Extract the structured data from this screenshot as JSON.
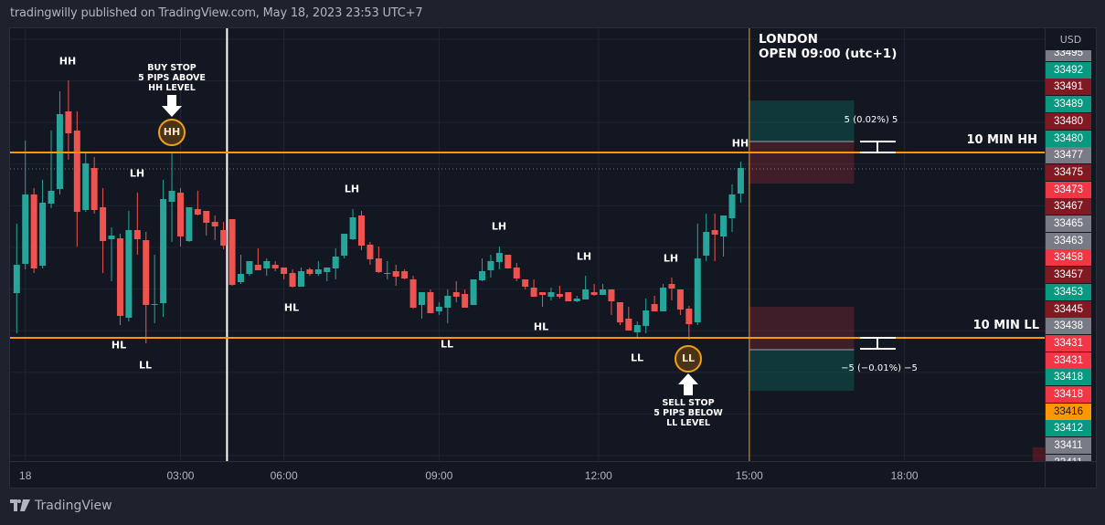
{
  "header": {
    "title": "tradingwilly published on TradingView.com, May 18, 2023 23:53 UTC+7"
  },
  "footer": {
    "brand": "TradingView",
    "logo_icon": "tradingview-logo-icon"
  },
  "colors": {
    "up": "#26a69a",
    "down": "#ef5350",
    "level": "#ff9800",
    "background": "#131722",
    "current_price_line": "#26a69a"
  },
  "chart_data": {
    "type": "candlestick",
    "currency": "USD",
    "ylim": [
      33395.5,
      33514.25
    ],
    "grid": true,
    "current_price": 33475.5,
    "x_ticks": [
      {
        "label": "18",
        "bar": 1
      },
      {
        "label": "03:00",
        "bar": 19
      },
      {
        "label": "06:00",
        "bar": 31
      },
      {
        "label": "09:00",
        "bar": 49
      },
      {
        "label": "12:00",
        "bar": 67.5
      },
      {
        "label": "15:00",
        "bar": 85
      },
      {
        "label": "18:00",
        "bar": 103
      }
    ],
    "candles_ohlc": [
      [
        33441.5,
        33460.5,
        33430.5,
        33449.25
      ],
      [
        33449.5,
        33483.25,
        33448,
        33468.5
      ],
      [
        33468.5,
        33470.25,
        33447,
        33448.25
      ],
      [
        33449,
        33472.5,
        33448.25,
        33466.25
      ],
      [
        33466,
        33486,
        33464.75,
        33469.5
      ],
      [
        33470,
        33496.75,
        33468.5,
        33490.5
      ],
      [
        33491.25,
        33499.75,
        33478,
        33485.25
      ],
      [
        33486,
        33491.25,
        33454.25,
        33463.75
      ],
      [
        33464.25,
        33479.75,
        33463.75,
        33477
      ],
      [
        33475.75,
        33478.75,
        33463.25,
        33464.25
      ],
      [
        33465,
        33470.25,
        33447,
        33455.75
      ],
      [
        33456.25,
        33459.5,
        33444.75,
        33457.25
      ],
      [
        33456.5,
        33457.75,
        33432.75,
        33435.25
      ],
      [
        33434.75,
        33464,
        33433.75,
        33458.75
      ],
      [
        33458.75,
        33469,
        33452,
        33456.25
      ],
      [
        33456,
        33458.25,
        33427.75,
        33438.25
      ],
      [
        33438.5,
        33452,
        33433.25,
        33438.5
      ],
      [
        33438.75,
        33472.5,
        33435,
        33467.25
      ],
      [
        33466.5,
        33479.75,
        33455.5,
        33469.5
      ],
      [
        33469,
        33470.25,
        33454.25,
        33457
      ],
      [
        33455.75,
        33465,
        33455.5,
        33465
      ],
      [
        33464.5,
        33469.5,
        33462.75,
        33463
      ],
      [
        33464,
        33464,
        33457.25,
        33460.75
      ],
      [
        33461,
        33462.75,
        33456,
        33459.75
      ],
      [
        33458.75,
        33461,
        33453.5,
        33454.5
      ],
      [
        33461.75,
        33461.75,
        33443.5,
        33443.75
      ],
      [
        33444.5,
        33452,
        33444,
        33446.75
      ],
      [
        33446.75,
        33450.25,
        33446.25,
        33450.25
      ],
      [
        33449.25,
        33453.75,
        33447.75,
        33447.75
      ],
      [
        33448.25,
        33451,
        33446.25,
        33450.25
      ],
      [
        33449.25,
        33450.25,
        33447.5,
        33448.25
      ],
      [
        33448.5,
        33448.5,
        33445.25,
        33446.75
      ],
      [
        33447,
        33448,
        33443,
        33443.25
      ],
      [
        33443.25,
        33448.5,
        33443.25,
        33447.5
      ],
      [
        33448,
        33448.5,
        33446.25,
        33446.75
      ],
      [
        33446.75,
        33450.25,
        33446.25,
        33448
      ],
      [
        33447.25,
        33448.5,
        33444.75,
        33448.5
      ],
      [
        33448.25,
        33453.75,
        33445.25,
        33451.5
      ],
      [
        33451.75,
        33457.75,
        33451,
        33457.75
      ],
      [
        33456.25,
        33464.5,
        33456,
        33462.25
      ],
      [
        33462.75,
        33464,
        33453.25,
        33454.5
      ],
      [
        33454.75,
        33455.5,
        33449.25,
        33450.75
      ],
      [
        33451,
        33454.25,
        33447,
        33447.25
      ],
      [
        33447,
        33450.25,
        33445.25,
        33447
      ],
      [
        33447.5,
        33449.25,
        33443.5,
        33446
      ],
      [
        33447.5,
        33448,
        33445.25,
        33445.5
      ],
      [
        33445.25,
        33446.25,
        33437.25,
        33437.5
      ],
      [
        33438.25,
        33441.75,
        33434.5,
        33441.75
      ],
      [
        33441.75,
        33442.5,
        33436,
        33436
      ],
      [
        33436.5,
        33439,
        33435.5,
        33437.75
      ],
      [
        33437.5,
        33442.5,
        33433.25,
        33440.75
      ],
      [
        33441.75,
        33444.75,
        33439,
        33440.5
      ],
      [
        33441.25,
        33442.5,
        33437.5,
        33437.5
      ],
      [
        33438.25,
        33445.25,
        33438.25,
        33445.25
      ],
      [
        33445,
        33451,
        33444.75,
        33447.5
      ],
      [
        33447.75,
        33452,
        33445.75,
        33450.25
      ],
      [
        33450,
        33454.25,
        33448,
        33452.5
      ],
      [
        33452,
        33452,
        33448.25,
        33448.25
      ],
      [
        33448.5,
        33449.75,
        33444.75,
        33445.5
      ],
      [
        33445.25,
        33445.25,
        33442.5,
        33443.25
      ],
      [
        33443,
        33445.25,
        33440.5,
        33440.5
      ],
      [
        33441.75,
        33441.75,
        33437.75,
        33441
      ],
      [
        33440.5,
        33443,
        33439.5,
        33441.75
      ],
      [
        33441.25,
        33443.5,
        33440,
        33440.5
      ],
      [
        33441.75,
        33441.75,
        33439.25,
        33439.25
      ],
      [
        33439.25,
        33440.75,
        33439,
        33440
      ],
      [
        33439.75,
        33446.25,
        33439.75,
        33442.5
      ],
      [
        33441.75,
        33444,
        33440.75,
        33441
      ],
      [
        33441,
        33444,
        33441,
        33442.5
      ],
      [
        33442.5,
        33442.5,
        33435.5,
        33439.25
      ],
      [
        33439,
        33439,
        33432.75,
        33433.5
      ],
      [
        33434.5,
        33437.75,
        33431.25,
        33431.25
      ],
      [
        33430.75,
        33433.75,
        33429.25,
        33432.75
      ],
      [
        33432.5,
        33440,
        33430.5,
        33436.75
      ],
      [
        33438.5,
        33440.75,
        33436.5,
        33436.5
      ],
      [
        33436.5,
        33444,
        33436.5,
        33443
      ],
      [
        33444,
        33445.75,
        33439.5,
        33442.75
      ],
      [
        33442.5,
        33442.5,
        33435.5,
        33437
      ],
      [
        33437.25,
        33438,
        33428.75,
        33433
      ],
      [
        33433.5,
        33460.5,
        33432.75,
        33451
      ],
      [
        33451.75,
        33463.25,
        33450.25,
        33458.25
      ],
      [
        33458.75,
        33463.25,
        33450.25,
        33457.5
      ],
      [
        33457,
        33462.75,
        33451.5,
        33462.75
      ],
      [
        33462,
        33471.25,
        33458.25,
        33468.5
      ],
      [
        33468.75,
        33477.5,
        33466.25,
        33475.75
      ]
    ],
    "levels": [
      {
        "label": "10 MIN HH",
        "price": 33480
      },
      {
        "label": "10 MIN LL",
        "price": 33429.25
      }
    ],
    "vertical_lines": [
      {
        "bar": 24.4,
        "color": "#ffffff"
      },
      {
        "bar": 85,
        "color": "#ff9800",
        "label_line1": "LONDON",
        "label_line2": "OPEN 09:00 (utc+1)"
      }
    ],
    "positions": [
      {
        "type": "long",
        "start_bar": 85,
        "end_bar": 98,
        "entry": 33483,
        "target": 33494.25,
        "stop": 33471.5,
        "label": "5 (0.02%) 5"
      },
      {
        "type": "short",
        "start_bar": 85,
        "end_bar": 98,
        "entry": 33426,
        "target": 33414.75,
        "stop": 33437.75,
        "label": "−5 (−0.01%) −5"
      }
    ],
    "swing_labels": [
      "HH",
      "LH",
      "HL",
      "LL",
      "LH",
      "HL",
      "LH",
      "LL",
      "HL",
      "LH",
      "LL",
      "LH",
      "HH"
    ],
    "buy_note": {
      "line1": "BUY STOP",
      "line2": "5 PIPS ABOVE",
      "line3": "HH LEVEL",
      "badge": "HH"
    },
    "sell_note": {
      "line1": "SELL STOP",
      "line2": "5 PIPS BELOW",
      "line3": "LL LEVEL",
      "badge": "LL"
    },
    "price_labels": [
      {
        "value": "33495",
        "color": "#787b86"
      },
      {
        "value": "33492",
        "color": "#089981"
      },
      {
        "value": "33491",
        "color": "#801922"
      },
      {
        "value": "33489",
        "color": "#089981"
      },
      {
        "value": "33480",
        "color": "#801922"
      },
      {
        "value": "33480",
        "color": "#089981"
      },
      {
        "value": "33477",
        "color": "#787b86"
      },
      {
        "value": "33475",
        "color": "#801922"
      },
      {
        "value": "33473",
        "color": "#f23645"
      },
      {
        "value": "33467",
        "color": "#801922"
      },
      {
        "value": "33465",
        "color": "#787b86"
      },
      {
        "value": "33463",
        "color": "#787b86"
      },
      {
        "value": "33458",
        "color": "#f23645"
      },
      {
        "value": "33457",
        "color": "#801922"
      },
      {
        "value": "33453",
        "color": "#089981"
      },
      {
        "value": "33445",
        "color": "#801922"
      },
      {
        "value": "33438",
        "color": "#787b86"
      },
      {
        "value": "33431",
        "color": "#f23645"
      },
      {
        "value": "33431",
        "color": "#f23645"
      },
      {
        "value": "33418",
        "color": "#089981"
      },
      {
        "value": "33418",
        "color": "#f23645"
      },
      {
        "value": "33416",
        "color": "#ff9800"
      },
      {
        "value": "33412",
        "color": "#089981"
      },
      {
        "value": "33411",
        "color": "#787b86"
      },
      {
        "value": "33411",
        "color": "#787b86"
      }
    ]
  }
}
